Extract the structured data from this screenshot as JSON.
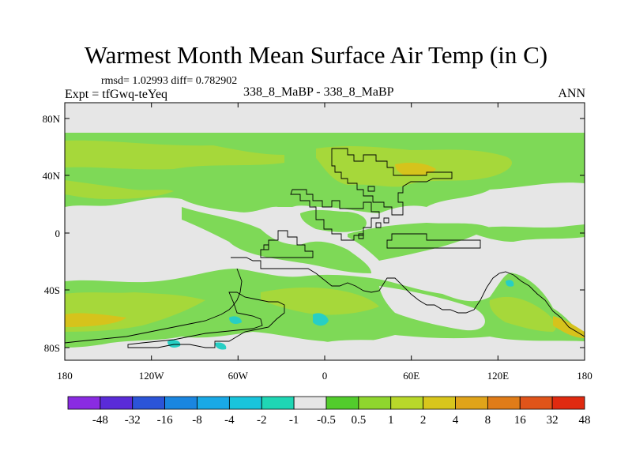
{
  "title": "Warmest Month Mean Surface Air Temp (in C)",
  "stats": "rmsd= 1.02993 diff= 0.782902",
  "expt": "Expt = tfGwq-teYeq",
  "center_label": "338_8_MaBP - 338_8_MaBP",
  "season": "ANN",
  "colors": {
    "background_field": "#e6e6e6",
    "green_light": "#7ed957",
    "green_mid": "#5ccd36",
    "yellow_green": "#a6d83a",
    "yellow": "#d6c31c",
    "cyan": "#27cfc4",
    "coast": "#000000"
  },
  "map": {
    "x_ticks": [
      "180",
      "120W",
      "60W",
      "0",
      "60E",
      "120E",
      "180"
    ],
    "y_ticks": [
      "80N",
      "40N",
      "0",
      "40S",
      "80S"
    ]
  },
  "colorbar": {
    "colors": [
      "#8a2be2",
      "#5a2bd8",
      "#2b54d8",
      "#1a86e0",
      "#19a9e6",
      "#19c4dc",
      "#1fd6b4",
      "#e6e6e6",
      "#52cc2c",
      "#8fd62e",
      "#b8d82a",
      "#d8c61c",
      "#e0a41a",
      "#e07c18",
      "#e0541a",
      "#e02a10"
    ],
    "labels": [
      "-48",
      "-32",
      "-16",
      "-8",
      "-4",
      "-2",
      "-1",
      "-0.5",
      "0.5",
      "1",
      "2",
      "4",
      "8",
      "16",
      "32",
      "48"
    ]
  }
}
